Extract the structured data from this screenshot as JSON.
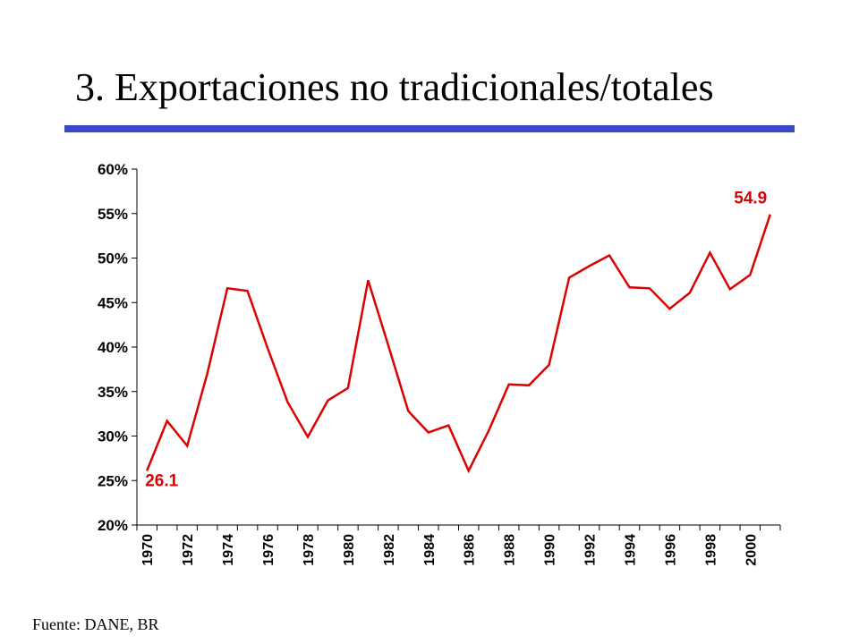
{
  "slide": {
    "title": "3. Exportaciones no tradicionales/totales",
    "source": "Fuente: DANE, BR",
    "accent_color": "#3f48cc"
  },
  "chart_data": {
    "type": "line",
    "x": [
      1970,
      1971,
      1972,
      1973,
      1974,
      1975,
      1976,
      1977,
      1978,
      1979,
      1980,
      1981,
      1982,
      1983,
      1984,
      1985,
      1986,
      1987,
      1988,
      1989,
      1990,
      1991,
      1992,
      1993,
      1994,
      1995,
      1996,
      1997,
      1998,
      1999,
      2000,
      2001
    ],
    "series": [
      {
        "values": [
          26.1,
          31.7,
          28.9,
          37.0,
          46.6,
          46.3,
          39.9,
          33.8,
          29.9,
          34.0,
          35.4,
          47.5,
          40.2,
          32.8,
          30.4,
          31.2,
          26.1,
          30.6,
          35.8,
          35.7,
          38.0,
          47.8,
          49.1,
          50.3,
          46.7,
          46.6,
          44.3,
          46.1,
          50.6,
          46.5,
          48.1,
          54.9
        ],
        "color": "#dd0000"
      }
    ],
    "ylim": [
      20,
      60
    ],
    "yticks": [
      "20%",
      "25%",
      "30%",
      "35%",
      "40%",
      "45%",
      "50%",
      "55%",
      "60%"
    ],
    "xtick_labels": [
      "1970",
      "1972",
      "1974",
      "1976",
      "1978",
      "1980",
      "1982",
      "1984",
      "1986",
      "1988",
      "1990",
      "1992",
      "1994",
      "1996",
      "1998",
      "2000"
    ],
    "annotations": [
      {
        "text": "26.1",
        "year": 1970,
        "value": 26.1
      },
      {
        "text": "54.9",
        "year": 2001,
        "value": 54.9
      }
    ],
    "grid": false,
    "legend": "none"
  }
}
